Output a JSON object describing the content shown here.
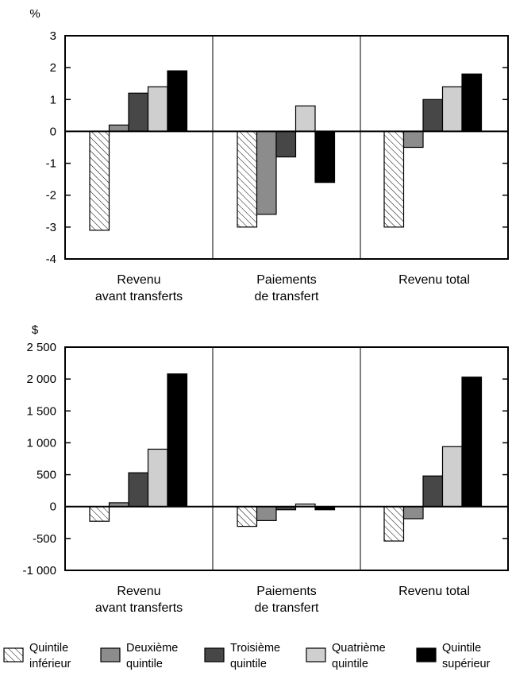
{
  "chart_data": [
    {
      "type": "bar",
      "ylabel": "%",
      "ylim": [
        -4,
        3
      ],
      "yticks": [
        3,
        2,
        1,
        0,
        -1,
        -2,
        -3,
        -4
      ],
      "ytick_labels": [
        "3",
        "2",
        "1",
        "0",
        "-1",
        "-2",
        "-3",
        "-4"
      ],
      "categories": [
        [
          "Revenu",
          "avant transferts"
        ],
        [
          "Paiements",
          "de transfert"
        ],
        [
          "Revenu total"
        ]
      ],
      "series": [
        {
          "name": "Quintile inférieur",
          "values": [
            -3.1,
            -3.0,
            -3.0
          ]
        },
        {
          "name": "Deuxième quintile",
          "values": [
            0.2,
            -2.6,
            -0.5
          ]
        },
        {
          "name": "Troisième quintile",
          "values": [
            1.2,
            -0.8,
            1.0
          ]
        },
        {
          "name": "Quatrième quintile",
          "values": [
            1.4,
            0.8,
            1.4
          ]
        },
        {
          "name": "Quintile supérieur",
          "values": [
            1.9,
            -1.6,
            1.8
          ]
        }
      ]
    },
    {
      "type": "bar",
      "ylabel": "$",
      "ylim": [
        -1000,
        2500
      ],
      "yticks": [
        2500,
        2000,
        1500,
        1000,
        500,
        0,
        -500,
        -1000
      ],
      "ytick_labels": [
        "2 500",
        "2 000",
        "1 500",
        "1 000",
        "500",
        "0",
        "-500",
        "-1 000"
      ],
      "categories": [
        [
          "Revenu",
          "avant transferts"
        ],
        [
          "Paiements",
          "de transfert"
        ],
        [
          "Revenu total"
        ]
      ],
      "series": [
        {
          "name": "Quintile inférieur",
          "values": [
            -230,
            -310,
            -540
          ]
        },
        {
          "name": "Deuxième quintile",
          "values": [
            60,
            -220,
            -190
          ]
        },
        {
          "name": "Troisième quintile",
          "values": [
            530,
            -50,
            480
          ]
        },
        {
          "name": "Quatrième quintile",
          "values": [
            900,
            40,
            940
          ]
        },
        {
          "name": "Quintile supérieur",
          "values": [
            2080,
            -50,
            2030
          ]
        }
      ]
    }
  ],
  "legend": [
    {
      "lines": [
        "Quintile",
        "inférieur"
      ],
      "style": "hatch"
    },
    {
      "lines": [
        "Deuxième",
        "quintile"
      ],
      "color": "#8c8c8c"
    },
    {
      "lines": [
        "Troisième",
        "quintile"
      ],
      "color": "#474747"
    },
    {
      "lines": [
        "Quatrième",
        "quintile"
      ],
      "color": "#cfcfcf"
    },
    {
      "lines": [
        "Quintile",
        "supérieur"
      ],
      "color": "#000000"
    }
  ],
  "series_colors": [
    "hatch",
    "#8c8c8c",
    "#474747",
    "#cfcfcf",
    "#000000"
  ]
}
